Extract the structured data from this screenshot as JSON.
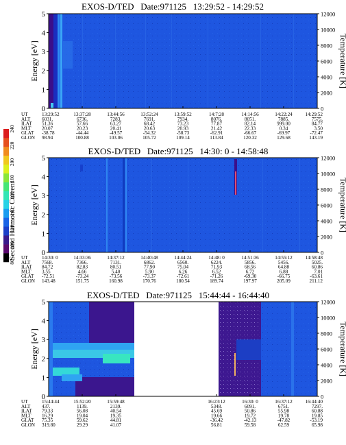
{
  "colorbar": {
    "label": "Second Harmonic Current",
    "ticks": [
      "240",
      "220",
      "200",
      "180",
      "160",
      "140",
      "120",
      "100",
      "80"
    ],
    "colors": [
      "#000000",
      "#5a0a6e",
      "#3a1a8c",
      "#1c3fc8",
      "#1a64e6",
      "#1a9cf0",
      "#28d2e6",
      "#34e6b4",
      "#46e676",
      "#8ae63a",
      "#dcf01e",
      "#f0c81e",
      "#f08c1e",
      "#e6501e",
      "#dc1e1e"
    ]
  },
  "chart_data": [
    {
      "type": "heatmap",
      "title": "EXOS-D/TED   Date:971125   13:29:52 - 14:29:52",
      "ylabel": "Energy [eV]",
      "ylabel_right": "Temperature [K]",
      "ylim": [
        0,
        5
      ],
      "ylim_right": [
        0,
        12000
      ],
      "yticks": [
        "0",
        "1",
        "2",
        "3",
        "4",
        "5"
      ],
      "yticks_right": [
        "0",
        "2000",
        "4000",
        "6000",
        "8000",
        "10000",
        "12000"
      ],
      "row_labels": [
        "UT",
        "ALT",
        "ILAT",
        "MLT",
        "GLAT",
        "GLON"
      ],
      "columns": [
        {
          "UT": "13:29:52",
          "ALT": "6031.",
          "ILAT": "51.36",
          "MLT": "20.07",
          "GLAT": "-38.78",
          "GLON": "98.94"
        },
        {
          "UT": "13:37:28",
          "ALT": "6736.",
          "ILAT": "57.66",
          "MLT": "20.23",
          "GLAT": "-44.44",
          "GLON": "100.88"
        },
        {
          "UT": "13:44:56",
          "ALT": "7283.",
          "ILAT": "63.27",
          "MLT": "20.41",
          "GLAT": "-49.57",
          "GLON": "103.06"
        },
        {
          "UT": "13:52:24",
          "ALT": "7691.",
          "ILAT": "68.42",
          "MLT": "20.63",
          "GLAT": "-54.32",
          "GLON": "105.72"
        },
        {
          "UT": "13:59:52",
          "ALT": "7934.",
          "ILAT": "73.23",
          "MLT": "20.93",
          "GLAT": "-58.73",
          "GLON": "109.14"
        },
        {
          "UT": "14:7:28",
          "ALT": "8076.",
          "ILAT": "77.87",
          "MLT": "21.42",
          "GLAT": "-62.91",
          "GLON": "113.84"
        },
        {
          "UT": "14:14:56",
          "ALT": "8051.",
          "ILAT": "82.14",
          "MLT": "22.33",
          "GLAT": "-66.67",
          "GLON": "120.32"
        },
        {
          "UT": "14:22:24",
          "ALT": "7885.",
          "ILAT": "999.00",
          "MLT": "0.34",
          "GLAT": "-69.97",
          "GLON": "129.68"
        },
        {
          "UT": "14:29:52",
          "ALT": "7575.",
          "ILAT": "84.77",
          "MLT": "3.50",
          "GLAT": "-72.47",
          "GLON": "143.19"
        }
      ]
    },
    {
      "type": "heatmap",
      "title": "EXOS-D/TED   Date:971125   14:30: 0 - 14:58:48",
      "ylabel": "Energy [eV]",
      "ylabel_right": "Temperature [K]",
      "ylim": [
        0,
        5
      ],
      "ylim_right": [
        0,
        12000
      ],
      "yticks": [
        "0",
        "1",
        "2",
        "3",
        "4",
        "5"
      ],
      "yticks_right": [
        "0",
        "2000",
        "4000",
        "6000",
        "8000",
        "10000",
        "12000"
      ],
      "row_labels": [
        "UT",
        "ALT",
        "ILAT",
        "MLT",
        "GLAT",
        "GLON"
      ],
      "columns": [
        {
          "UT": "14:30: 0",
          "ALT": "7568.",
          "ILAT": "84.72",
          "MLT": "3.55",
          "GLAT": "-72.51",
          "GLON": "143.48"
        },
        {
          "UT": "14:33:36",
          "ALT": "7366.",
          "ILAT": "82.83",
          "MLT": "4.66",
          "GLAT": "-73.24",
          "GLON": "151.75"
        },
        {
          "UT": "14:37:12",
          "ALT": "7131.",
          "ILAT": "80.51",
          "MLT": "5.40",
          "GLAT": "-73.56",
          "GLON": "160.98"
        },
        {
          "UT": "14:40:48",
          "ALT": "6862.",
          "ILAT": "77.90",
          "MLT": "5.90",
          "GLAT": "-73.37",
          "GLON": "170.76"
        },
        {
          "UT": "14:44:24",
          "ALT": "6560.",
          "ILAT": "75.04",
          "MLT": "6.26",
          "GLAT": "-72.61",
          "GLON": "180.54"
        },
        {
          "UT": "14:48: 0",
          "ALT": "6224.",
          "ILAT": "71.93",
          "MLT": "6.52",
          "GLAT": "-71.26",
          "GLON": "189.74"
        },
        {
          "UT": "14:51:36",
          "ALT": "5856.",
          "ILAT": "68.56",
          "MLT": "6.72",
          "GLAT": "-69.30",
          "GLON": "197.97"
        },
        {
          "UT": "14:55:12",
          "ALT": "5456.",
          "ILAT": "64.88",
          "MLT": "6.88",
          "GLAT": "-66.75",
          "GLON": "205.09"
        },
        {
          "UT": "14:58:48",
          "ALT": "5025.",
          "ILAT": "60.86",
          "MLT": "7.01",
          "GLAT": "-63.61",
          "GLON": "211.12"
        }
      ]
    },
    {
      "type": "heatmap",
      "title": "EXOS-D/TED   Date:971125   15:44:44 - 16:44:40",
      "ylabel": "Energy [eV]",
      "ylabel_right": "Temperature [K]",
      "ylim": [
        0,
        5
      ],
      "ylim_right": [
        0,
        12000
      ],
      "yticks": [
        "0",
        "1",
        "2",
        "3",
        "4",
        "5"
      ],
      "yticks_right": [
        "0",
        "2000",
        "4000",
        "6000",
        "8000",
        "10000",
        "12000"
      ],
      "row_labels": [
        "UT",
        "ALT",
        "ILAT",
        "MLT",
        "GLAT",
        "GLON"
      ],
      "columns": [
        {
          "UT": "15:44:44",
          "ALT": "437.",
          "ILAT": "79.33",
          "MLT": "16.29",
          "GLAT": "75.35",
          "GLON": "319.80"
        },
        {
          "UT": "15:52:20",
          "ALT": "1139.",
          "ILAT": "56.08",
          "MLT": "19.04",
          "GLAT": "59.62",
          "GLON": "29.29"
        },
        {
          "UT": "15:59:48",
          "ALT": "2139.",
          "ILAT": "40.54",
          "MLT": "19.35",
          "GLAT": "44.81",
          "GLON": "41.07"
        },
        {
          "UT": "",
          "ALT": "",
          "ILAT": "",
          "MLT": "",
          "GLAT": "",
          "GLON": ""
        },
        {
          "UT": "",
          "ALT": "",
          "ILAT": "",
          "MLT": "",
          "GLAT": "",
          "GLON": ""
        },
        {
          "UT": "16:23:12",
          "ALT": "5348.",
          "ILAT": "45.69",
          "MLT": "19.66",
          "GLAT": "-36.42",
          "GLON": "56.81"
        },
        {
          "UT": "16:30: 0",
          "ALT": "6091.",
          "ILAT": "50.86",
          "MLT": "19.72",
          "GLAT": "-42.13",
          "GLON": "59.58"
        },
        {
          "UT": "16:37:12",
          "ALT": "6751.",
          "ILAT": "55.98",
          "MLT": "19.78",
          "GLAT": "-47.82",
          "GLON": "62.59"
        },
        {
          "UT": "16:44:40",
          "ALT": "7297.",
          "ILAT": "60.88",
          "MLT": "19.85",
          "GLAT": "-53.19",
          "GLON": "65.98"
        }
      ]
    }
  ]
}
